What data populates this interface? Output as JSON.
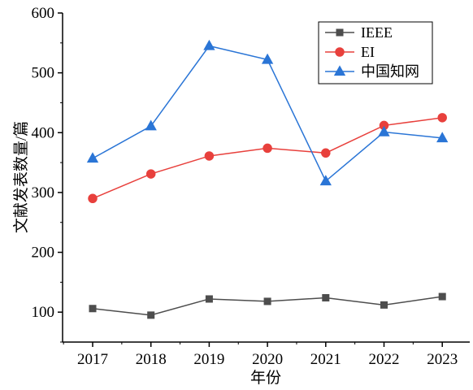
{
  "chart_data": {
    "type": "line",
    "xlabel": "年份",
    "ylabel": "文献发表数量/篇",
    "x": [
      "2017",
      "2018",
      "2019",
      "2020",
      "2021",
      "2022",
      "2023"
    ],
    "y_ticks": [
      "100",
      "200",
      "300",
      "400",
      "500",
      "600"
    ],
    "ylim": [
      50,
      600
    ],
    "grid": false,
    "legend_position": "top-right",
    "series": [
      {
        "name": "IEEE",
        "values": [
          106,
          95,
          122,
          118,
          124,
          112,
          126
        ],
        "color": "#4d4d4d",
        "marker": "square"
      },
      {
        "name": "EI",
        "values": [
          290,
          331,
          361,
          374,
          366,
          412,
          425
        ],
        "color": "#e8403c",
        "marker": "circle"
      },
      {
        "name": "中国知网",
        "values": [
          357,
          411,
          545,
          522,
          319,
          401,
          391
        ],
        "color": "#2a75d6",
        "marker": "triangle"
      }
    ]
  }
}
